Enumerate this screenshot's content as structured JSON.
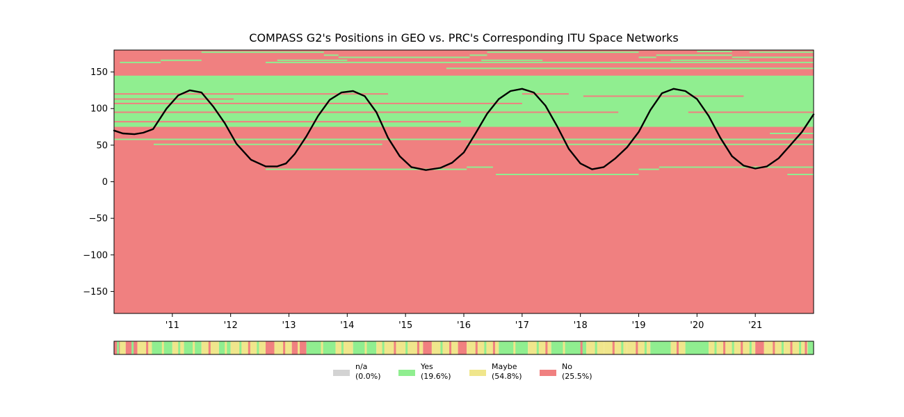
{
  "chart_data": {
    "type": "heatmap",
    "title": "COMPASS G2's Positions in GEO vs. PRC's Corresponding ITU Space Networks",
    "xlabel": "",
    "ylabel": "",
    "x_range": [
      2010.0,
      2022.0
    ],
    "ylim": [
      -180,
      180
    ],
    "x_ticks": [
      2011,
      2012,
      2013,
      2014,
      2015,
      2016,
      2017,
      2018,
      2019,
      2020,
      2021
    ],
    "x_tick_labels": [
      "'11",
      "'12",
      "'13",
      "'14",
      "'15",
      "'16",
      "'17",
      "'18",
      "'19",
      "'20",
      "'21"
    ],
    "y_ticks": [
      150,
      100,
      50,
      0,
      -50,
      -100,
      -150
    ],
    "y_tick_labels": [
      "150",
      "100",
      "50",
      "0",
      "−50",
      "−100",
      "−150"
    ],
    "grid": false,
    "background_status": "No",
    "status_colors": {
      "n/a": "#d3d3d3",
      "Yes": "#90ee90",
      "Maybe": "#f0e68c",
      "No": "#f08080"
    },
    "network_bands": [
      {
        "status": "Yes",
        "y_from": 75,
        "y_to": 145,
        "x_from": 2010.0,
        "x_to": 2022.0
      }
    ],
    "network_lines": [
      {
        "y": 177,
        "x_from": 2011.5,
        "x_to": 2013.6,
        "status": "Yes"
      },
      {
        "y": 177,
        "x_from": 2016.4,
        "x_to": 2019.0,
        "status": "Yes"
      },
      {
        "y": 178,
        "x_from": 2020.0,
        "x_to": 2020.6,
        "status": "Yes"
      },
      {
        "y": 177,
        "x_from": 2020.9,
        "x_to": 2022.0,
        "status": "Yes"
      },
      {
        "y": 173,
        "x_from": 2013.6,
        "x_to": 2013.85,
        "status": "Yes"
      },
      {
        "y": 173,
        "x_from": 2016.1,
        "x_to": 2016.4,
        "status": "Yes"
      },
      {
        "y": 173,
        "x_from": 2019.3,
        "x_to": 2020.6,
        "status": "Yes"
      },
      {
        "y": 170,
        "x_from": 2013.85,
        "x_to": 2016.1,
        "status": "Yes"
      },
      {
        "y": 170,
        "x_from": 2019.0,
        "x_to": 2019.3,
        "status": "Yes"
      },
      {
        "y": 170,
        "x_from": 2020.6,
        "x_to": 2022.0,
        "status": "Yes"
      },
      {
        "y": 166,
        "x_from": 2010.8,
        "x_to": 2011.5,
        "status": "Yes"
      },
      {
        "y": 166,
        "x_from": 2012.8,
        "x_to": 2014.0,
        "status": "Yes"
      },
      {
        "y": 166,
        "x_from": 2016.3,
        "x_to": 2017.35,
        "status": "Yes"
      },
      {
        "y": 166,
        "x_from": 2019.55,
        "x_to": 2020.9,
        "status": "Yes"
      },
      {
        "y": 163,
        "x_from": 2010.1,
        "x_to": 2010.8,
        "status": "Yes"
      },
      {
        "y": 163,
        "x_from": 2012.6,
        "x_to": 2022.0,
        "status": "Yes"
      },
      {
        "y": 155,
        "x_from": 2015.7,
        "x_to": 2022.0,
        "status": "Yes"
      },
      {
        "y": 120,
        "x_from": 2010.0,
        "x_to": 2014.7,
        "status": "No"
      },
      {
        "y": 113,
        "x_from": 2010.0,
        "x_to": 2012.05,
        "status": "No"
      },
      {
        "y": 107,
        "x_from": 2010.0,
        "x_to": 2017.0,
        "status": "No"
      },
      {
        "y": 120,
        "x_from": 2017.0,
        "x_to": 2017.8,
        "status": "No"
      },
      {
        "y": 117,
        "x_from": 2018.05,
        "x_to": 2020.8,
        "status": "No"
      },
      {
        "y": 95,
        "x_from": 2010.0,
        "x_to": 2018.65,
        "status": "No"
      },
      {
        "y": 95,
        "x_from": 2019.85,
        "x_to": 2022.0,
        "status": "No"
      },
      {
        "y": 82,
        "x_from": 2010.0,
        "x_to": 2015.95,
        "status": "No"
      },
      {
        "y": 66,
        "x_from": 2021.25,
        "x_to": 2022.0,
        "status": "Yes"
      },
      {
        "y": 58,
        "x_from": 2010.0,
        "x_to": 2022.0,
        "status": "Yes"
      },
      {
        "y": 51,
        "x_from": 2010.68,
        "x_to": 2014.6,
        "status": "Yes"
      },
      {
        "y": 51,
        "x_from": 2016.05,
        "x_to": 2022.0,
        "status": "Yes"
      },
      {
        "y": 20,
        "x_from": 2016.05,
        "x_to": 2016.5,
        "status": "Yes"
      },
      {
        "y": 20,
        "x_from": 2019.35,
        "x_to": 2022.0,
        "status": "Yes"
      },
      {
        "y": 17,
        "x_from": 2012.6,
        "x_to": 2016.05,
        "status": "Yes"
      },
      {
        "y": 17,
        "x_from": 2019.0,
        "x_to": 2019.35,
        "status": "Yes"
      },
      {
        "y": 10,
        "x_from": 2016.55,
        "x_to": 2019.0,
        "status": "Yes"
      },
      {
        "y": 10,
        "x_from": 2021.55,
        "x_to": 2022.0,
        "status": "Yes"
      }
    ],
    "position_series": {
      "name": "",
      "x": [
        2010.0,
        2010.15,
        2010.35,
        2010.5,
        2010.67,
        2010.9,
        2011.1,
        2011.3,
        2011.5,
        2011.7,
        2011.9,
        2012.1,
        2012.35,
        2012.6,
        2012.8,
        2012.95,
        2013.1,
        2013.3,
        2013.5,
        2013.7,
        2013.9,
        2014.1,
        2014.3,
        2014.5,
        2014.7,
        2014.9,
        2015.1,
        2015.35,
        2015.6,
        2015.8,
        2016.0,
        2016.2,
        2016.4,
        2016.6,
        2016.8,
        2017.0,
        2017.2,
        2017.4,
        2017.6,
        2017.8,
        2018.0,
        2018.2,
        2018.4,
        2018.6,
        2018.8,
        2019.0,
        2019.2,
        2019.4,
        2019.6,
        2019.8,
        2020.0,
        2020.2,
        2020.4,
        2020.6,
        2020.8,
        2021.0,
        2021.2,
        2021.4,
        2021.6,
        2021.8,
        2022.0
      ],
      "y": [
        70,
        66,
        65,
        67,
        72,
        100,
        118,
        125,
        122,
        103,
        80,
        52,
        30,
        21,
        21,
        25,
        38,
        62,
        90,
        112,
        122,
        124,
        117,
        95,
        60,
        35,
        20,
        16,
        19,
        26,
        40,
        66,
        93,
        113,
        124,
        127,
        122,
        104,
        76,
        45,
        25,
        17,
        20,
        32,
        47,
        68,
        98,
        121,
        127,
        124,
        113,
        90,
        60,
        35,
        22,
        18,
        21,
        32,
        50,
        68,
        92
      ]
    },
    "status_strip": {
      "colors": {
        "n/a": "#d3d3d3",
        "Yes": "#90ee90",
        "Maybe": "#f0e68c",
        "No": "#f08080"
      },
      "segments": [
        {
          "x_from": 2010.0,
          "x_to": 2010.1,
          "status": "No"
        },
        {
          "x_from": 2010.1,
          "x_to": 2010.2,
          "status": "Maybe"
        },
        {
          "x_from": 2010.2,
          "x_to": 2010.4,
          "status": "No"
        },
        {
          "x_from": 2010.4,
          "x_to": 2010.65,
          "status": "Maybe"
        },
        {
          "x_from": 2010.65,
          "x_to": 2011.0,
          "status": "Yes"
        },
        {
          "x_from": 2011.0,
          "x_to": 2011.2,
          "status": "Maybe"
        },
        {
          "x_from": 2011.2,
          "x_to": 2011.5,
          "status": "Yes"
        },
        {
          "x_from": 2011.5,
          "x_to": 2011.8,
          "status": "Maybe"
        },
        {
          "x_from": 2011.8,
          "x_to": 2012.0,
          "status": "Yes"
        },
        {
          "x_from": 2012.0,
          "x_to": 2012.6,
          "status": "Maybe"
        },
        {
          "x_from": 2012.6,
          "x_to": 2012.75,
          "status": "No"
        },
        {
          "x_from": 2012.75,
          "x_to": 2013.05,
          "status": "Maybe"
        },
        {
          "x_from": 2013.05,
          "x_to": 2013.3,
          "status": "No"
        },
        {
          "x_from": 2013.3,
          "x_to": 2013.8,
          "status": "Yes"
        },
        {
          "x_from": 2013.8,
          "x_to": 2014.1,
          "status": "Maybe"
        },
        {
          "x_from": 2014.1,
          "x_to": 2014.5,
          "status": "Yes"
        },
        {
          "x_from": 2014.5,
          "x_to": 2015.3,
          "status": "Maybe"
        },
        {
          "x_from": 2015.3,
          "x_to": 2015.45,
          "status": "No"
        },
        {
          "x_from": 2015.45,
          "x_to": 2015.9,
          "status": "Maybe"
        },
        {
          "x_from": 2015.9,
          "x_to": 2016.05,
          "status": "No"
        },
        {
          "x_from": 2016.05,
          "x_to": 2016.6,
          "status": "Maybe"
        },
        {
          "x_from": 2016.6,
          "x_to": 2017.1,
          "status": "Yes"
        },
        {
          "x_from": 2017.1,
          "x_to": 2017.5,
          "status": "Maybe"
        },
        {
          "x_from": 2017.5,
          "x_to": 2018.1,
          "status": "Yes"
        },
        {
          "x_from": 2018.1,
          "x_to": 2018.4,
          "status": "Maybe"
        },
        {
          "x_from": 2018.4,
          "x_to": 2018.8,
          "status": "Maybe"
        },
        {
          "x_from": 2018.8,
          "x_to": 2019.2,
          "status": "Maybe"
        },
        {
          "x_from": 2019.2,
          "x_to": 2019.55,
          "status": "Yes"
        },
        {
          "x_from": 2019.55,
          "x_to": 2019.8,
          "status": "Maybe"
        },
        {
          "x_from": 2019.8,
          "x_to": 2020.2,
          "status": "Yes"
        },
        {
          "x_from": 2020.2,
          "x_to": 2021.0,
          "status": "Maybe"
        },
        {
          "x_from": 2021.0,
          "x_to": 2021.15,
          "status": "No"
        },
        {
          "x_from": 2021.15,
          "x_to": 2021.5,
          "status": "Maybe"
        },
        {
          "x_from": 2021.5,
          "x_to": 2021.9,
          "status": "Maybe"
        },
        {
          "x_from": 2021.9,
          "x_to": 2022.0,
          "status": "Yes"
        }
      ],
      "stripe_pattern": [
        {
          "x": 2010.05,
          "status": "Yes"
        },
        {
          "x": 2010.3,
          "status": "Yes"
        },
        {
          "x": 2010.55,
          "status": "No"
        },
        {
          "x": 2010.82,
          "status": "Maybe"
        },
        {
          "x": 2011.1,
          "status": "Yes"
        },
        {
          "x": 2011.35,
          "status": "Maybe"
        },
        {
          "x": 2011.62,
          "status": "No"
        },
        {
          "x": 2011.9,
          "status": "Maybe"
        },
        {
          "x": 2012.15,
          "status": "Yes"
        },
        {
          "x": 2012.3,
          "status": "No"
        },
        {
          "x": 2012.45,
          "status": "Yes"
        },
        {
          "x": 2012.9,
          "status": "No"
        },
        {
          "x": 2013.15,
          "status": "Maybe"
        },
        {
          "x": 2013.55,
          "status": "Maybe"
        },
        {
          "x": 2013.9,
          "status": "Yes"
        },
        {
          "x": 2014.3,
          "status": "Maybe"
        },
        {
          "x": 2014.6,
          "status": "Yes"
        },
        {
          "x": 2014.8,
          "status": "No"
        },
        {
          "x": 2015.0,
          "status": "Yes"
        },
        {
          "x": 2015.2,
          "status": "No"
        },
        {
          "x": 2015.6,
          "status": "Yes"
        },
        {
          "x": 2015.75,
          "status": "No"
        },
        {
          "x": 2016.2,
          "status": "No"
        },
        {
          "x": 2016.35,
          "status": "Yes"
        },
        {
          "x": 2016.5,
          "status": "No"
        },
        {
          "x": 2016.85,
          "status": "Maybe"
        },
        {
          "x": 2017.25,
          "status": "Yes"
        },
        {
          "x": 2017.4,
          "status": "No"
        },
        {
          "x": 2017.7,
          "status": "Maybe"
        },
        {
          "x": 2018.0,
          "status": "No"
        },
        {
          "x": 2018.25,
          "status": "Yes"
        },
        {
          "x": 2018.55,
          "status": "No"
        },
        {
          "x": 2018.7,
          "status": "Yes"
        },
        {
          "x": 2018.95,
          "status": "No"
        },
        {
          "x": 2019.1,
          "status": "Yes"
        },
        {
          "x": 2019.65,
          "status": "No"
        },
        {
          "x": 2020.3,
          "status": "Yes"
        },
        {
          "x": 2020.45,
          "status": "No"
        },
        {
          "x": 2020.6,
          "status": "Yes"
        },
        {
          "x": 2020.75,
          "status": "No"
        },
        {
          "x": 2020.9,
          "status": "Yes"
        },
        {
          "x": 2021.3,
          "status": "No"
        },
        {
          "x": 2021.45,
          "status": "Yes"
        },
        {
          "x": 2021.6,
          "status": "No"
        },
        {
          "x": 2021.75,
          "status": "Yes"
        },
        {
          "x": 2021.85,
          "status": "No"
        }
      ]
    },
    "legend": {
      "placement": "bottom-center",
      "entries": [
        {
          "label": "n/a",
          "pct": "(0.0%)",
          "color": "#d3d3d3"
        },
        {
          "label": "Yes",
          "pct": "(19.6%)",
          "color": "#90ee90"
        },
        {
          "label": "Maybe",
          "pct": "(54.8%)",
          "color": "#f0e68c"
        },
        {
          "label": "No",
          "pct": "(25.5%)",
          "color": "#f08080"
        }
      ]
    }
  }
}
